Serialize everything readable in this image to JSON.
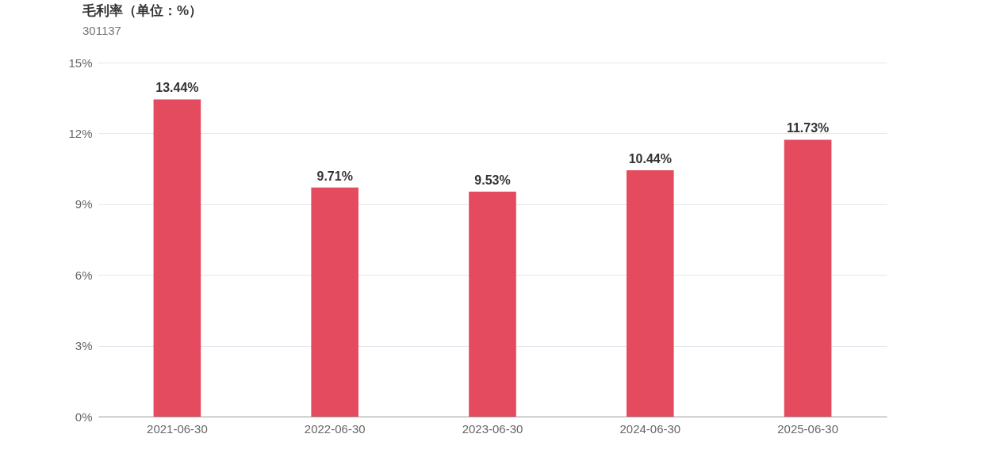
{
  "chart_data": {
    "type": "bar",
    "title": "毛利率（单位：%）",
    "subtitle": "301137",
    "categories": [
      "2021-06-30",
      "2022-06-30",
      "2023-06-30",
      "2024-06-30",
      "2025-06-30"
    ],
    "values": [
      13.44,
      9.71,
      9.53,
      10.44,
      11.73
    ],
    "value_labels": [
      "13.44%",
      "9.71%",
      "9.53%",
      "10.44%",
      "11.73%"
    ],
    "color": "#e54b5f",
    "ylim": [
      0,
      15
    ],
    "yticks": [
      {
        "value": 0,
        "label": "0%"
      },
      {
        "value": 3,
        "label": "3%"
      },
      {
        "value": 6,
        "label": "6%"
      },
      {
        "value": 9,
        "label": "9%"
      },
      {
        "value": 12,
        "label": "12%"
      },
      {
        "value": 15,
        "label": "15%"
      }
    ],
    "grid": "y"
  }
}
